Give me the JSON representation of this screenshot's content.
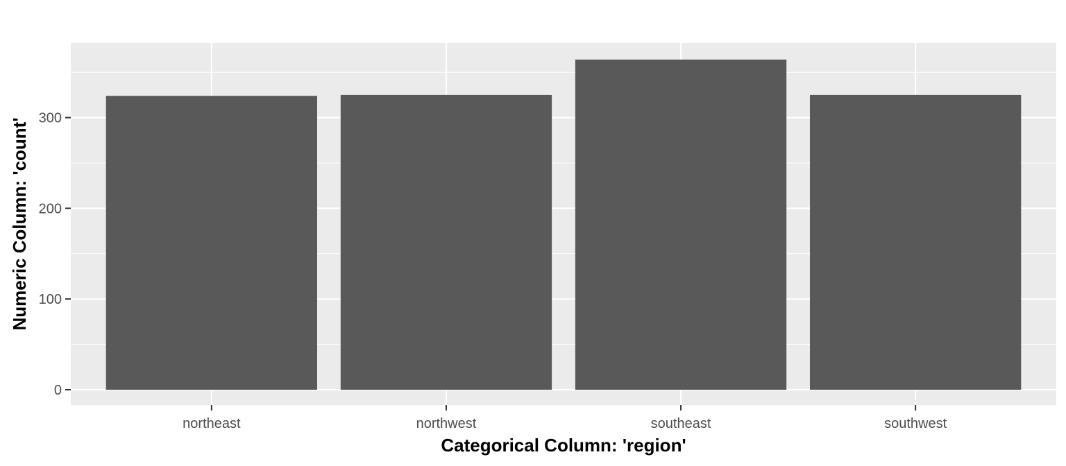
{
  "chart_data": {
    "type": "bar",
    "title": "",
    "xlabel": "Categorical Column: 'region'",
    "ylabel": "Numeric Column: 'count'",
    "categories": [
      "northeast",
      "northwest",
      "southeast",
      "southwest"
    ],
    "values": [
      324,
      325,
      364,
      325
    ],
    "ylim": [
      0,
      382
    ],
    "yticks": [
      0,
      100,
      200,
      300
    ],
    "grid": true,
    "legend": "none",
    "colors": {
      "bar": "#595959",
      "panel": "#ebebeb",
      "grid": "#ffffff",
      "tick_text": "#4d4d4d",
      "title_text": "#000000"
    }
  }
}
